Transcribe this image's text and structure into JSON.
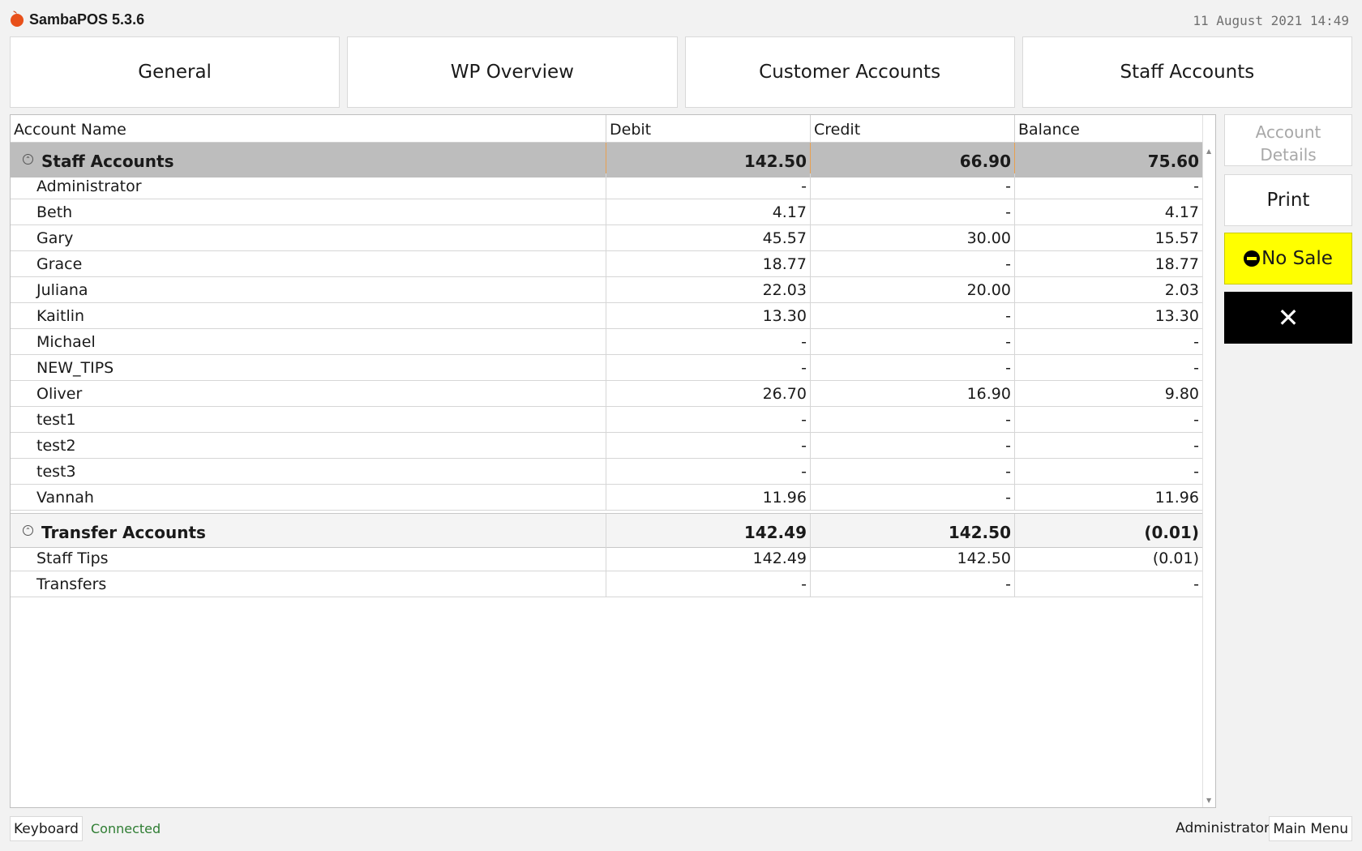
{
  "app": {
    "title": "SambaPOS 5.3.6",
    "datetime": "11 August 2021 14:49"
  },
  "tabs": [
    {
      "label": "General"
    },
    {
      "label": "WP Overview"
    },
    {
      "label": "Customer Accounts"
    },
    {
      "label": "Staff Accounts"
    }
  ],
  "grid": {
    "columns": [
      "Account Name",
      "Debit",
      "Credit",
      "Balance"
    ],
    "groups": [
      {
        "name": "Staff Accounts",
        "debit": "142.50",
        "credit": "66.90",
        "balance": "75.60",
        "rows": [
          {
            "name": "Administrator",
            "debit": "-",
            "credit": "-",
            "balance": "-"
          },
          {
            "name": "Beth",
            "debit": "4.17",
            "credit": "-",
            "balance": "4.17"
          },
          {
            "name": "Gary",
            "debit": "45.57",
            "credit": "30.00",
            "balance": "15.57"
          },
          {
            "name": "Grace",
            "debit": "18.77",
            "credit": "-",
            "balance": "18.77"
          },
          {
            "name": "Juliana",
            "debit": "22.03",
            "credit": "20.00",
            "balance": "2.03"
          },
          {
            "name": "Kaitlin",
            "debit": "13.30",
            "credit": "-",
            "balance": "13.30"
          },
          {
            "name": "Michael",
            "debit": "-",
            "credit": "-",
            "balance": "-"
          },
          {
            "name": "NEW_TIPS",
            "debit": "-",
            "credit": "-",
            "balance": "-"
          },
          {
            "name": "Oliver",
            "debit": "26.70",
            "credit": "16.90",
            "balance": "9.80"
          },
          {
            "name": "test1",
            "debit": "-",
            "credit": "-",
            "balance": "-"
          },
          {
            "name": "test2",
            "debit": "-",
            "credit": "-",
            "balance": "-"
          },
          {
            "name": "test3",
            "debit": "-",
            "credit": "-",
            "balance": "-"
          },
          {
            "name": "Vannah",
            "debit": "11.96",
            "credit": "-",
            "balance": "11.96"
          }
        ]
      },
      {
        "name": "Transfer Accounts",
        "debit": "142.49",
        "credit": "142.50",
        "balance": "(0.01)",
        "rows": [
          {
            "name": "Staff Tips",
            "debit": "142.49",
            "credit": "142.50",
            "balance": "(0.01)"
          },
          {
            "name": "Transfers",
            "debit": "-",
            "credit": "-",
            "balance": "-"
          }
        ]
      }
    ]
  },
  "side_buttons": {
    "account_details": "Account Details",
    "print": "Print",
    "no_sale": "No Sale",
    "close": "✕"
  },
  "status_bar": {
    "keyboard": "Keyboard",
    "status": "Connected",
    "user": "Administrator",
    "main_menu": "Main Menu"
  },
  "colors": {
    "no_sale_bg": "#ffff00",
    "close_bg": "#000000",
    "connected": "#2e7d32",
    "staff_group_bg": "#bdbdbd"
  }
}
